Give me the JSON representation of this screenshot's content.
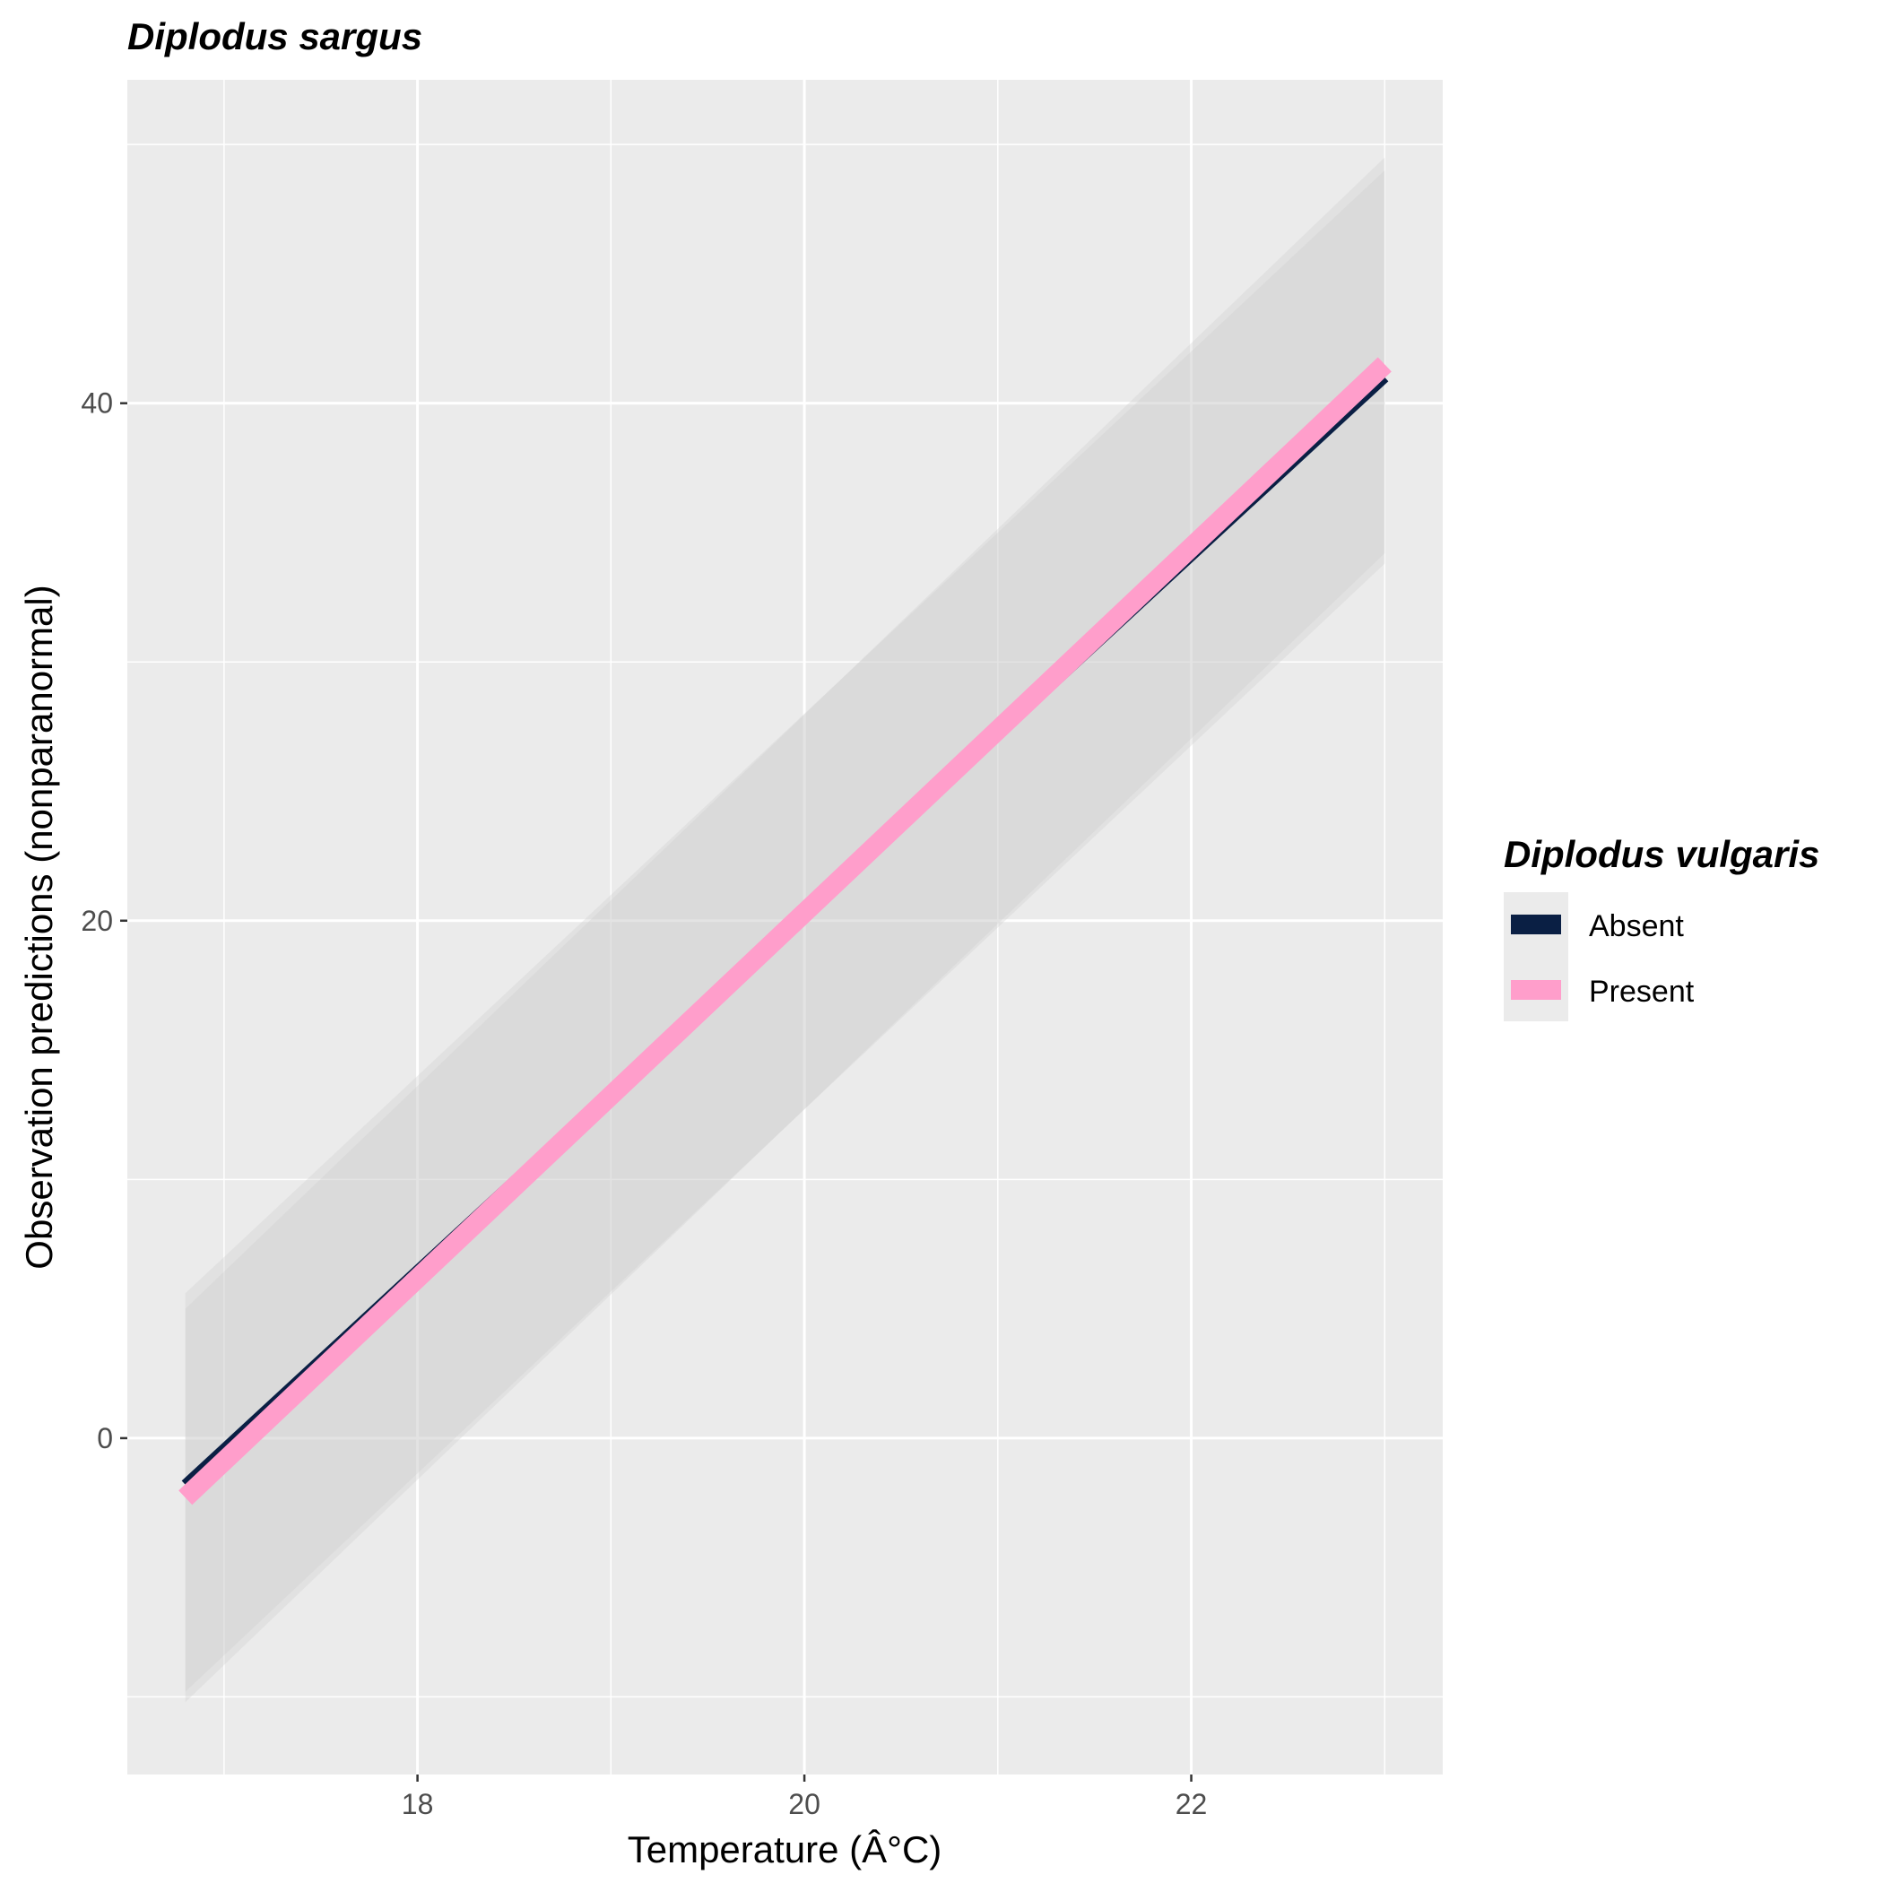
{
  "chart_data": {
    "type": "line",
    "title": "Diplodus sargus",
    "xlabel": "Temperature (Â°C)",
    "ylabel": "Observation predictions (nonparanormal)",
    "xlim": [
      16.5,
      23.3
    ],
    "ylim": [
      -13,
      52.5
    ],
    "x_ticks": [
      18,
      20,
      22
    ],
    "x_tick_labels": [
      "18",
      "20",
      "22"
    ],
    "y_ticks": [
      0,
      20,
      40
    ],
    "y_tick_labels": [
      "0",
      "20",
      "40"
    ],
    "x_minor": [
      17,
      19,
      21,
      23
    ],
    "y_minor": [
      -10,
      10,
      30,
      50
    ],
    "grid": true,
    "legend": {
      "title": "Diplodus vulgaris",
      "position": "right",
      "entries": [
        "Absent",
        "Present"
      ]
    },
    "series": [
      {
        "name": "Absent",
        "color": "#0a1f44",
        "x": [
          16.8,
          23.0
        ],
        "y": [
          -1.8,
          41.0
        ],
        "ci_lower": [
          -9.8,
          33.8
        ],
        "ci_upper": [
          5.6,
          49.0
        ]
      },
      {
        "name": "Present",
        "color": "#ff9ecb",
        "x": [
          16.8,
          23.0
        ],
        "y": [
          -2.3,
          41.5
        ],
        "ci_lower": [
          -10.2,
          34.2
        ],
        "ci_upper": [
          5.0,
          49.5
        ]
      }
    ]
  },
  "colors": {
    "panel_background": "#ebebeb",
    "grid_line": "#ffffff",
    "ribbon": "#d9d9d9"
  }
}
